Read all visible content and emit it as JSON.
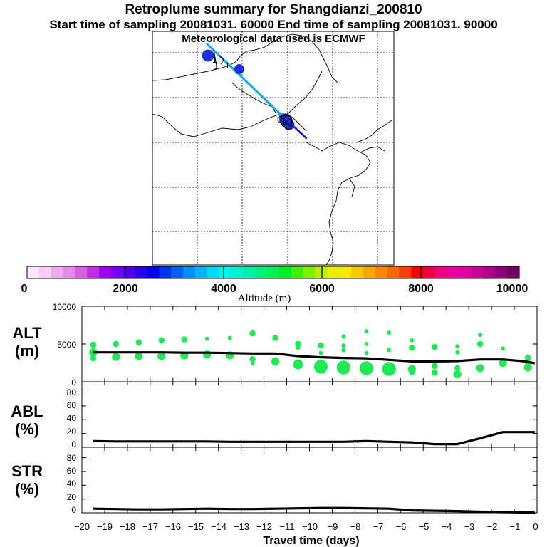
{
  "header": {
    "title": "Retroplume summary for Shangdianzi_200810",
    "sampling": "Start time of sampling 20081031. 60000     End time of sampling 20081031. 90000",
    "met": "Meteorological data used is ECMWF"
  },
  "colors": {
    "track_line": "#1eaaf0",
    "track_tail": "#1414c8",
    "cluster": "#2030d8",
    "dots": "#22e855",
    "series_line": "#000000"
  },
  "colorbar": {
    "title": "Altitude (m)",
    "tick_labels": [
      "0",
      "2000",
      "4000",
      "6000",
      "8000",
      "10000"
    ],
    "colors": [
      "#ffe8ff",
      "#f8ccf8",
      "#f0a8f0",
      "#e888e8",
      "#d860e0",
      "#c030e0",
      "#a000f0",
      "#7800f0",
      "#5000f0",
      "#2800e8",
      "#0000f0",
      "#0030f0",
      "#0060f0",
      "#0090f8",
      "#00b8f8",
      "#00d8f8",
      "#00f0f0",
      "#00f0d0",
      "#00f0a8",
      "#00f080",
      "#00f050",
      "#00f028",
      "#40f000",
      "#80f000",
      "#b8f000",
      "#e8f000",
      "#f8e800",
      "#f8c800",
      "#f8a800",
      "#f88800",
      "#f86800",
      "#f84000",
      "#f80000",
      "#f00040",
      "#f00080",
      "#e800a0",
      "#e000a8",
      "#c80098",
      "#b00088",
      "#900078",
      "#700060"
    ]
  },
  "map": {
    "labels": [
      {
        "text": "1",
        "ref": "glyph-1"
      },
      {
        "text": "1",
        "ref": "glyph-2"
      }
    ]
  },
  "chart_data": [
    {
      "type": "scatter",
      "title": "",
      "ylabel": "ALT (m)",
      "ylabel_lines": [
        "ALT",
        "(m)"
      ],
      "xlabel": "",
      "xlim": [
        -20,
        0
      ],
      "ylim": [
        0,
        10000
      ],
      "yticks": [
        "10000",
        "5000",
        "0"
      ],
      "line_series": {
        "name": "mean altitude",
        "x": [
          -19.5,
          -18.5,
          -17.5,
          -16.5,
          -15.5,
          -14.5,
          -13.5,
          -12.5,
          -11.5,
          -10.5,
          -9.5,
          -8.5,
          -7.5,
          -6.5,
          -5.5,
          -4.5,
          -3.5,
          -2.5,
          -1.5,
          -0.5,
          -0.1
        ],
        "y": [
          3900,
          3900,
          3900,
          3900,
          3850,
          3850,
          3800,
          3750,
          3750,
          3400,
          3250,
          3150,
          3100,
          2900,
          2700,
          2700,
          2750,
          2950,
          2950,
          2700,
          2450
        ]
      },
      "dot_series": {
        "name": "plume altitude clusters",
        "points": [
          {
            "x": -19.5,
            "y": 4900,
            "s": 2
          },
          {
            "x": -19.5,
            "y": 3900,
            "s": 3
          },
          {
            "x": -19.5,
            "y": 3100,
            "s": 2
          },
          {
            "x": -18.5,
            "y": 5000,
            "s": 2
          },
          {
            "x": -18.5,
            "y": 3300,
            "s": 3
          },
          {
            "x": -17.5,
            "y": 5200,
            "s": 2
          },
          {
            "x": -17.5,
            "y": 3400,
            "s": 3
          },
          {
            "x": -16.5,
            "y": 5500,
            "s": 2
          },
          {
            "x": -16.5,
            "y": 3400,
            "s": 3
          },
          {
            "x": -15.5,
            "y": 5600,
            "s": 2
          },
          {
            "x": -15.5,
            "y": 3500,
            "s": 3
          },
          {
            "x": -14.5,
            "y": 5700,
            "s": 1
          },
          {
            "x": -14.5,
            "y": 3600,
            "s": 3
          },
          {
            "x": -13.5,
            "y": 5800,
            "s": 1
          },
          {
            "x": -13.5,
            "y": 3500,
            "s": 3
          },
          {
            "x": -12.5,
            "y": 6400,
            "s": 2
          },
          {
            "x": -12.5,
            "y": 3000,
            "s": 2
          },
          {
            "x": -12.5,
            "y": 2500,
            "s": 1
          },
          {
            "x": -11.5,
            "y": 5800,
            "s": 2
          },
          {
            "x": -11.5,
            "y": 2700,
            "s": 3
          },
          {
            "x": -10.5,
            "y": 5000,
            "s": 2
          },
          {
            "x": -10.5,
            "y": 4500,
            "s": 1
          },
          {
            "x": -10.5,
            "y": 2300,
            "s": 4
          },
          {
            "x": -9.5,
            "y": 4800,
            "s": 2
          },
          {
            "x": -9.5,
            "y": 3800,
            "s": 1
          },
          {
            "x": -9.5,
            "y": 2000,
            "s": 6
          },
          {
            "x": -8.5,
            "y": 6000,
            "s": 1
          },
          {
            "x": -8.5,
            "y": 4800,
            "s": 1
          },
          {
            "x": -8.5,
            "y": 4200,
            "s": 1
          },
          {
            "x": -8.5,
            "y": 1900,
            "s": 6
          },
          {
            "x": -7.5,
            "y": 6700,
            "s": 1
          },
          {
            "x": -7.5,
            "y": 5000,
            "s": 1
          },
          {
            "x": -7.5,
            "y": 3800,
            "s": 1
          },
          {
            "x": -7.5,
            "y": 1800,
            "s": 6
          },
          {
            "x": -6.5,
            "y": 6500,
            "s": 1
          },
          {
            "x": -6.5,
            "y": 4200,
            "s": 1
          },
          {
            "x": -6.5,
            "y": 1700,
            "s": 6
          },
          {
            "x": -5.5,
            "y": 5500,
            "s": 1
          },
          {
            "x": -5.5,
            "y": 4500,
            "s": 2
          },
          {
            "x": -5.5,
            "y": 1700,
            "s": 3
          },
          {
            "x": -5.5,
            "y": 1300,
            "s": 2
          },
          {
            "x": -4.5,
            "y": 4600,
            "s": 2
          },
          {
            "x": -4.5,
            "y": 2100,
            "s": 2
          },
          {
            "x": -4.5,
            "y": 1200,
            "s": 2
          },
          {
            "x": -3.5,
            "y": 4700,
            "s": 1
          },
          {
            "x": -3.5,
            "y": 3900,
            "s": 1
          },
          {
            "x": -3.5,
            "y": 1800,
            "s": 2
          },
          {
            "x": -3.5,
            "y": 1000,
            "s": 3
          },
          {
            "x": -2.5,
            "y": 6200,
            "s": 1
          },
          {
            "x": -2.5,
            "y": 5000,
            "s": 2
          },
          {
            "x": -2.5,
            "y": 1800,
            "s": 3
          },
          {
            "x": -1.5,
            "y": 4400,
            "s": 1
          },
          {
            "x": -1.5,
            "y": 2500,
            "s": 3
          },
          {
            "x": -0.4,
            "y": 3200,
            "s": 2
          },
          {
            "x": -0.4,
            "y": 2500,
            "s": 2
          },
          {
            "x": -0.4,
            "y": 1900,
            "s": 3
          }
        ]
      }
    },
    {
      "type": "line",
      "ylabel": "ABL (%)",
      "ylabel_lines": [
        "ABL",
        "(%)"
      ],
      "xlim": [
        -20,
        0
      ],
      "ylim": [
        0,
        95
      ],
      "yticks": [
        "80",
        "60",
        "40",
        "20",
        "0"
      ],
      "series": [
        {
          "name": "ABL fraction",
          "x": [
            -19.5,
            -18.5,
            -17.5,
            -16.5,
            -15.5,
            -14.5,
            -13.5,
            -12.5,
            -11.5,
            -10.5,
            -9.5,
            -8.5,
            -7.5,
            -6.5,
            -5.5,
            -4.5,
            -3.5,
            -2.5,
            -1.5,
            -0.5,
            -0.1
          ],
          "y": [
            9,
            8.5,
            8.5,
            8.5,
            8.5,
            8.5,
            8,
            8,
            8,
            8,
            8,
            8,
            9,
            8,
            7,
            4.5,
            4.5,
            13,
            22,
            22,
            22
          ]
        }
      ]
    },
    {
      "type": "line",
      "ylabel": "STR (%)",
      "ylabel_lines": [
        "STR",
        "(%)"
      ],
      "xlabel": "Travel time (days)",
      "xlim": [
        -20,
        0
      ],
      "ylim": [
        0,
        95
      ],
      "yticks": [
        "80",
        "60",
        "40",
        "20",
        "0"
      ],
      "xticks": [
        "−20",
        "−19",
        "−18",
        "−17",
        "−16",
        "−15",
        "−14",
        "−13",
        "−12",
        "−11",
        "−10",
        "−9",
        "−8",
        "−7",
        "−6",
        "−5",
        "−4",
        "−3",
        "−2",
        "−1",
        "0"
      ],
      "series": [
        {
          "name": "stratosphere fraction",
          "x": [
            -19.5,
            -18.5,
            -17.5,
            -16.5,
            -15.5,
            -14.5,
            -13.5,
            -12.5,
            -11.5,
            -10.5,
            -9.5,
            -8.5,
            -7.5,
            -6.5,
            -5.5,
            -4.5,
            -3.5,
            -2.5,
            -1.5,
            -0.5,
            -0.1
          ],
          "y": [
            6,
            5.5,
            5,
            5,
            5.5,
            6,
            5.5,
            5.5,
            6,
            6.5,
            7,
            7,
            6.5,
            6,
            3.5,
            3,
            2.5,
            1.5,
            1,
            0.5,
            0.5
          ]
        }
      ]
    }
  ]
}
